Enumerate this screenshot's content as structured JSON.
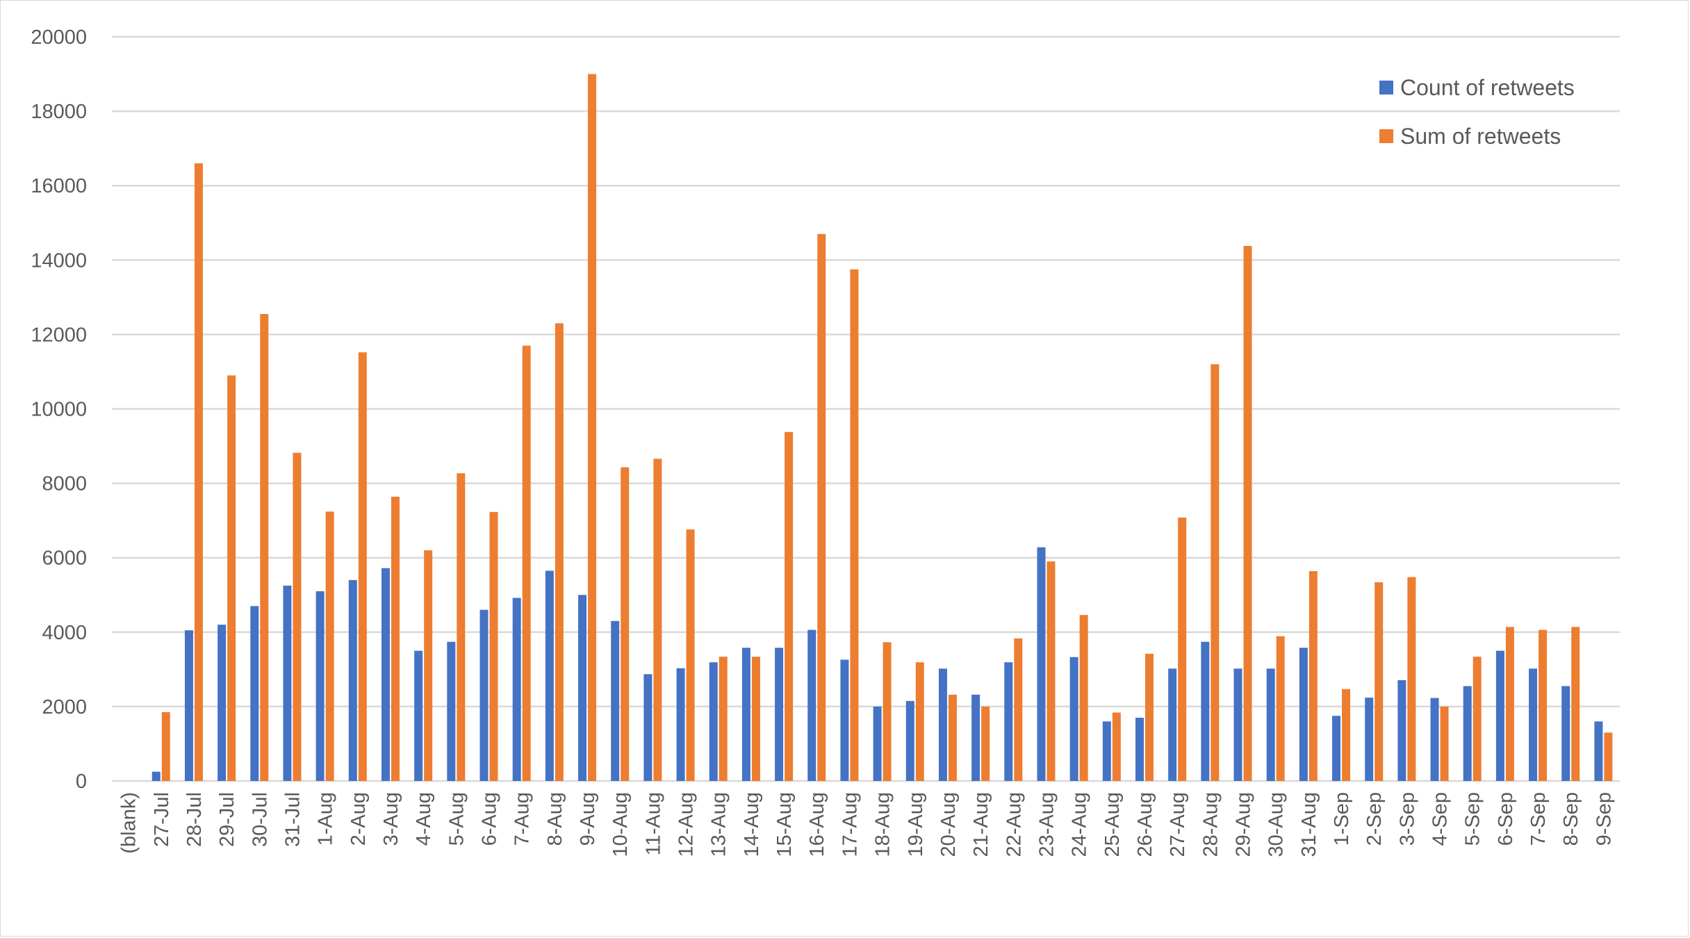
{
  "chart_data": {
    "type": "bar",
    "categories": [
      "(blank)",
      "27-Jul",
      "28-Jul",
      "29-Jul",
      "30-Jul",
      "31-Jul",
      "1-Aug",
      "2-Aug",
      "3-Aug",
      "4-Aug",
      "5-Aug",
      "6-Aug",
      "7-Aug",
      "8-Aug",
      "9-Aug",
      "10-Aug",
      "11-Aug",
      "12-Aug",
      "13-Aug",
      "14-Aug",
      "15-Aug",
      "16-Aug",
      "17-Aug",
      "18-Aug",
      "19-Aug",
      "20-Aug",
      "21-Aug",
      "22-Aug",
      "23-Aug",
      "24-Aug",
      "25-Aug",
      "26-Aug",
      "27-Aug",
      "28-Aug",
      "29-Aug",
      "30-Aug",
      "31-Aug",
      "1-Sep",
      "2-Sep",
      "3-Sep",
      "4-Sep",
      "5-Sep",
      "6-Sep",
      "7-Sep",
      "8-Sep",
      "9-Sep"
    ],
    "series": [
      {
        "name": "Count of retweets",
        "color": "#4472C4",
        "values": [
          0,
          250,
          4050,
          4200,
          4700,
          5250,
          5100,
          5400,
          5720,
          3500,
          3740,
          4600,
          4920,
          5650,
          5000,
          4300,
          2870,
          3030,
          3190,
          3580,
          3580,
          4060,
          3260,
          2000,
          2150,
          3020,
          2320,
          3190,
          6280,
          3330,
          1600,
          1700,
          3020,
          3740,
          3020,
          3020,
          3580,
          1750,
          2240,
          2710,
          2230,
          2550,
          3500,
          3020,
          2550,
          1600
        ]
      },
      {
        "name": "Sum of retweets",
        "color": "#ED7D31",
        "values": [
          0,
          1850,
          16600,
          10900,
          12550,
          8820,
          7240,
          11520,
          7640,
          6200,
          8270,
          7230,
          11700,
          12300,
          19000,
          8430,
          8660,
          6760,
          3340,
          3340,
          9380,
          14700,
          13750,
          3730,
          3190,
          2320,
          2000,
          3830,
          5900,
          4460,
          1840,
          3420,
          7080,
          11200,
          14380,
          3890,
          5640,
          2470,
          5340,
          5480,
          2000,
          3340,
          4140,
          4060,
          4140,
          1300
        ]
      }
    ],
    "ylim": [
      0,
      20000
    ],
    "yticks": [
      0,
      2000,
      4000,
      6000,
      8000,
      10000,
      12000,
      14000,
      16000,
      18000,
      20000
    ],
    "title": "",
    "xlabel": "",
    "ylabel": "",
    "grid": true,
    "legend_position": "top-right"
  }
}
